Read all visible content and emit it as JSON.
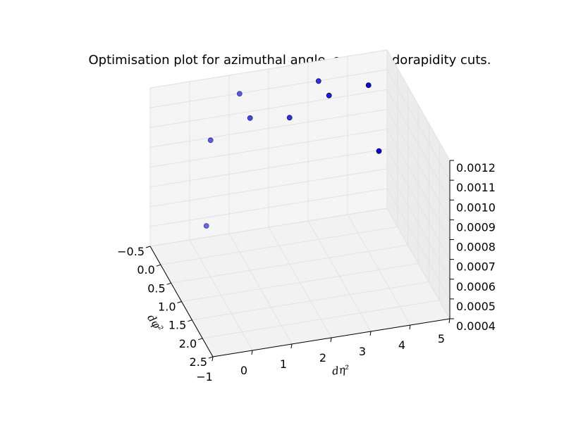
{
  "chart_data": {
    "type": "scatter",
    "projection": "3d",
    "title": "Optimisation plot for azimuthal angle, and pseudorapidity cuts.",
    "xlabel": "dφ²",
    "ylabel": "dη²",
    "zlabel": "",
    "xlim": [
      -0.5,
      2.5
    ],
    "ylim": [
      -1,
      5
    ],
    "zlim": [
      0.0004,
      0.0012
    ],
    "x_ticks": [
      "−0.5",
      "0.0",
      "0.5",
      "1.0",
      "1.5",
      "2.0",
      "2.5"
    ],
    "y_ticks": [
      "−1",
      "0",
      "1",
      "2",
      "3",
      "4",
      "5"
    ],
    "z_ticks": [
      "0.0004",
      "0.0005",
      "0.0006",
      "0.0007",
      "0.0008",
      "0.0009",
      "0.0010",
      "0.0011",
      "0.0012"
    ],
    "grid": true,
    "marker_color": "#0000ff",
    "points": [
      {
        "x": 0.3,
        "y": 0,
        "z": 0.00062
      },
      {
        "x": 0.5,
        "y": 0,
        "z": 0.00109
      },
      {
        "x": 0.0,
        "y": 1,
        "z": 0.0012
      },
      {
        "x": 0.5,
        "y": 1,
        "z": 0.00117
      },
      {
        "x": 0.0,
        "y": 3,
        "z": 0.0012
      },
      {
        "x": 0.5,
        "y": 2,
        "z": 0.00114
      },
      {
        "x": 0.5,
        "y": 3,
        "z": 0.00122
      },
      {
        "x": 0.5,
        "y": 4,
        "z": 0.00124
      },
      {
        "x": 1.0,
        "y": 4,
        "z": 0.001
      }
    ]
  }
}
